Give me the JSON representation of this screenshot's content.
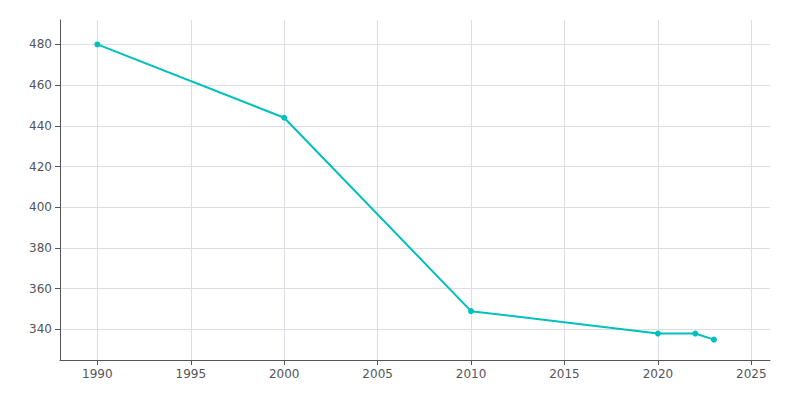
{
  "chart_data": {
    "type": "line",
    "x": [
      1990,
      2000,
      2010,
      2020,
      2022,
      2023
    ],
    "values": [
      480,
      444,
      349,
      338,
      338,
      335
    ],
    "color": "#00BFBF",
    "marker": "circle",
    "xlim": [
      1988,
      2026
    ],
    "ylim": [
      325,
      492
    ],
    "xticks": [
      1990,
      1995,
      2000,
      2005,
      2010,
      2015,
      2020,
      2025
    ],
    "yticks": [
      340,
      360,
      380,
      400,
      420,
      440,
      460,
      480
    ],
    "grid": true
  }
}
